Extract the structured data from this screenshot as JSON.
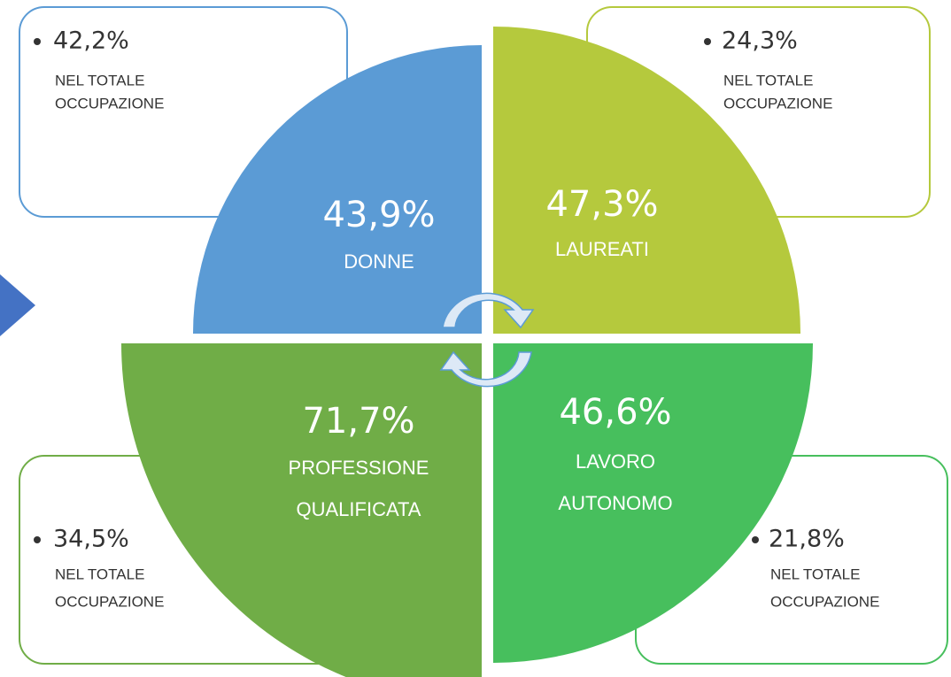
{
  "quadrants": [
    {
      "value": "43,9%",
      "label": [
        "DONNE"
      ],
      "note_value": "42,2%",
      "note": [
        "NEL TOTALE",
        "OCCUPAZIONE"
      ]
    },
    {
      "value": "47,3%",
      "label": [
        "LAUREATI"
      ],
      "note_value": "24,3%",
      "note": [
        "NEL TOTALE",
        "OCCUPAZIONE"
      ]
    },
    {
      "value": "71,7%",
      "label": [
        "PROFESSIONE",
        "QUALIFICATA"
      ],
      "note_value": "34,5%",
      "note": [
        "NEL TOTALE",
        "OCCUPAZIONE"
      ]
    },
    {
      "value": "46,6%",
      "label": [
        "LAVORO",
        "AUTONOMO"
      ],
      "note_value": "21,8%",
      "note": [
        "NEL TOTALE",
        "OCCUPAZIONE"
      ]
    }
  ]
}
